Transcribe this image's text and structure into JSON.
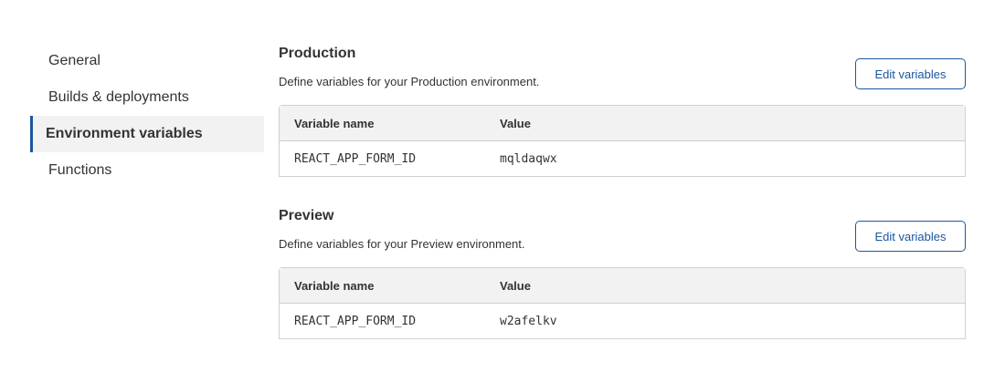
{
  "sidebar": {
    "items": [
      {
        "label": "General",
        "active": false
      },
      {
        "label": "Builds & deployments",
        "active": false
      },
      {
        "label": "Environment variables",
        "active": true
      },
      {
        "label": "Functions",
        "active": false
      }
    ]
  },
  "colors": {
    "accent": "#1a56a0",
    "header_bg": "#f2f2f2"
  },
  "sections": [
    {
      "title": "Production",
      "description": "Define variables for your Production environment.",
      "edit_label": "Edit variables",
      "columns": [
        "Variable name",
        "Value"
      ],
      "rows": [
        {
          "name": "REACT_APP_FORM_ID",
          "value": "mqldaqwx"
        }
      ]
    },
    {
      "title": "Preview",
      "description": "Define variables for your Preview environment.",
      "edit_label": "Edit variables",
      "columns": [
        "Variable name",
        "Value"
      ],
      "rows": [
        {
          "name": "REACT_APP_FORM_ID",
          "value": "w2afelkv"
        }
      ]
    }
  ]
}
